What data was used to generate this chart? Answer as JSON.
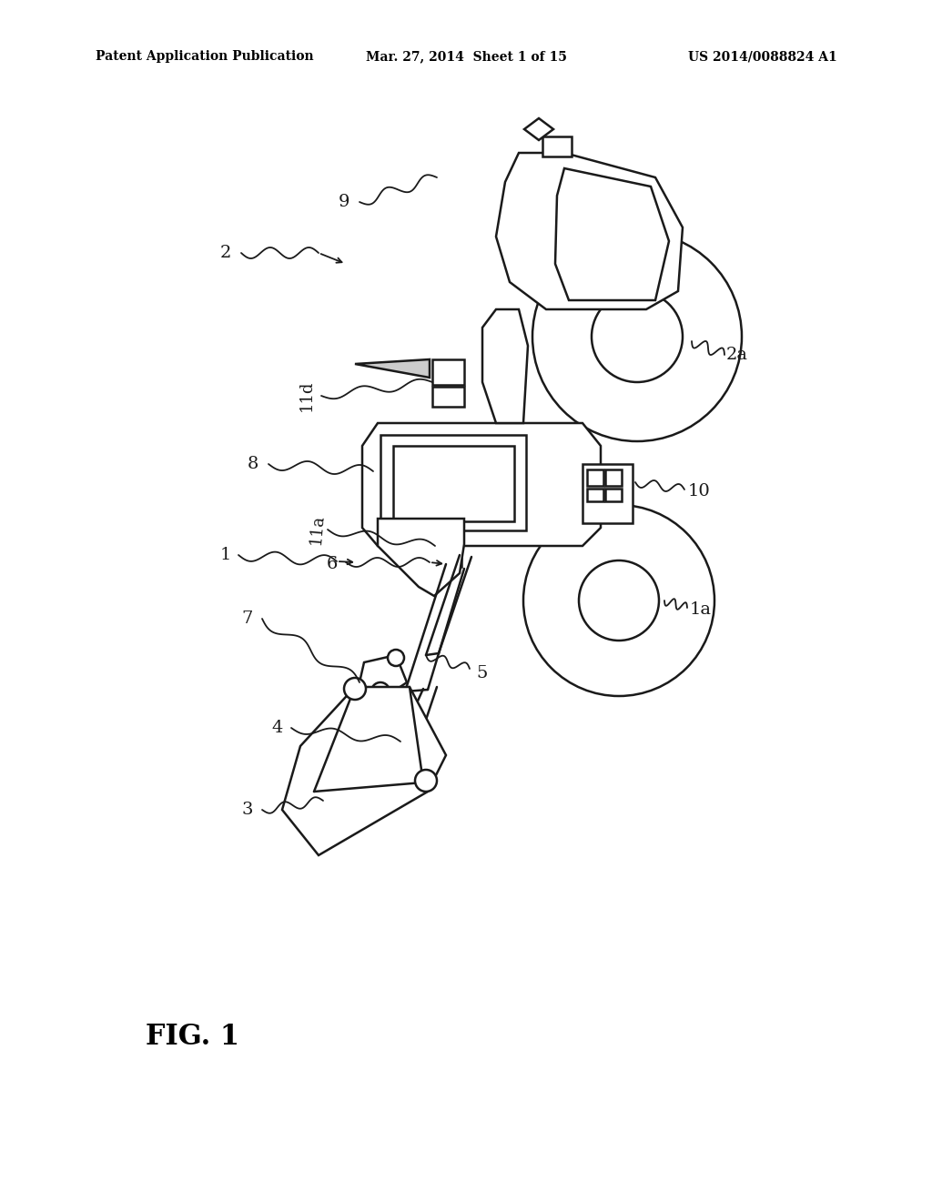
{
  "background_color": "#ffffff",
  "line_color": "#1a1a1a",
  "line_width": 1.8,
  "header_left": "Patent Application Publication",
  "header_mid": "Mar. 27, 2014  Sheet 1 of 15",
  "header_right": "US 2014/0088824 A1",
  "fig_label": "FIG. 1"
}
